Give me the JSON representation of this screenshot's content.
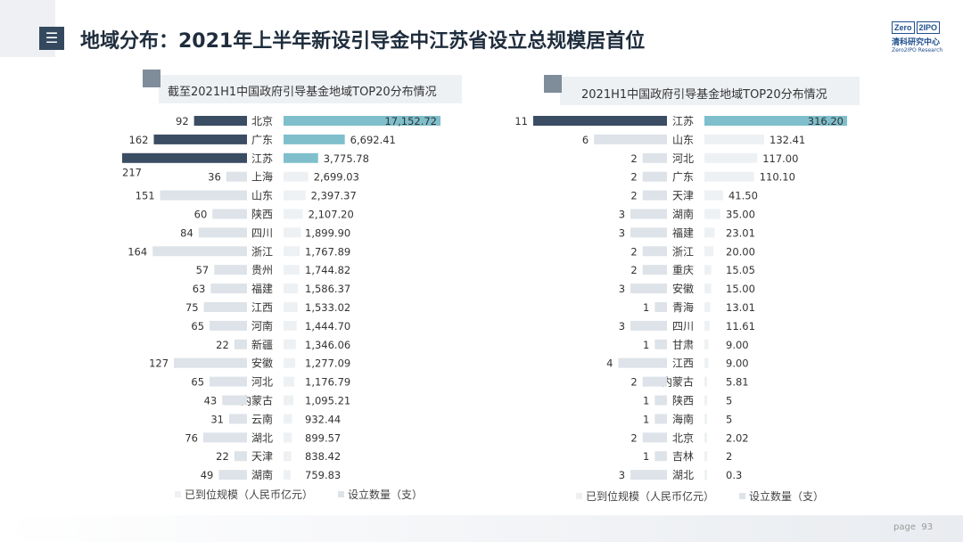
{
  "header": {
    "menu_glyph": "☰",
    "title": "地域分布：2021年上半年新设引导金中江苏省设立总规模居首位"
  },
  "logo": {
    "l1": "Zero",
    "l2": "2IPO",
    "cn": "清科研究中心",
    "en": "Zero2IPO Research"
  },
  "footer": {
    "page_label": "page",
    "page_number": "93"
  },
  "chart_data": [
    {
      "type": "bar",
      "title": "截至2021H1中国政府引导基金地域TOP20分布情况",
      "categories": [
        "北京",
        "广东",
        "江苏",
        "上海",
        "山东",
        "陕西",
        "四川",
        "浙江",
        "贵州",
        "福建",
        "江西",
        "河南",
        "新疆",
        "安徽",
        "河北",
        "内蒙古",
        "云南",
        "湖北",
        "天津",
        "湖南"
      ],
      "series": [
        {
          "name": "设立数量（支）",
          "side": "left",
          "values": [
            92,
            162,
            217,
            36,
            151,
            60,
            84,
            164,
            57,
            63,
            75,
            65,
            22,
            127,
            65,
            43,
            31,
            76,
            22,
            49
          ],
          "labels": [
            "92",
            "162",
            "217",
            "36",
            "151",
            "60",
            "84",
            "164",
            "57",
            "63",
            "75",
            "65",
            "22",
            "127",
            "65",
            "43",
            "31",
            "76",
            "22",
            "49"
          ]
        },
        {
          "name": "已到位规模（人民币亿元）",
          "side": "right",
          "values": [
            17152.72,
            6692.41,
            3775.78,
            2699.03,
            2397.37,
            2107.2,
            1899.9,
            1767.89,
            1744.82,
            1586.37,
            1533.02,
            1444.7,
            1346.06,
            1277.09,
            1176.79,
            1095.21,
            932.44,
            899.57,
            838.42,
            759.83
          ],
          "labels": [
            "17,152.72",
            "6,692.41",
            "3,775.78",
            "2,699.03",
            "2,397.37",
            "2,107.20",
            "1,899.90",
            "1,767.89",
            "1,744.82",
            "1,586.37",
            "1,533.02",
            "1,444.70",
            "1,346.06",
            "1,277.09",
            "1,176.79",
            "1,095.21",
            "932.44",
            "899.57",
            "838.42",
            "759.83"
          ]
        }
      ],
      "highlight_top": 3,
      "legend": [
        "已到位规模（人民币亿元）",
        "设立数量（支）"
      ],
      "colors": {
        "count_highlight": "#3a4d63",
        "amount_highlight": "#7fbfcc",
        "count_normal": "#dde3e8",
        "amount_normal": "#eef1f4"
      }
    },
    {
      "type": "bar",
      "title": "2021H1中国政府引导基金地域TOP20分布情况",
      "categories": [
        "江苏",
        "山东",
        "河北",
        "广东",
        "天津",
        "湖南",
        "福建",
        "浙江",
        "重庆",
        "安徽",
        "青海",
        "四川",
        "甘肃",
        "江西",
        "内蒙古",
        "陕西",
        "海南",
        "北京",
        "吉林",
        "湖北"
      ],
      "series": [
        {
          "name": "设立数量（支）",
          "side": "left",
          "values": [
            11,
            6,
            2,
            2,
            2,
            3,
            3,
            2,
            2,
            3,
            1,
            3,
            1,
            4,
            2,
            1,
            1,
            2,
            1,
            3
          ],
          "labels": [
            "11",
            "6",
            "2",
            "2",
            "2",
            "3",
            "3",
            "2",
            "2",
            "3",
            "1",
            "3",
            "1",
            "4",
            "2",
            "1",
            "1",
            "2",
            "1",
            "3"
          ]
        },
        {
          "name": "已到位规模（人民币亿元）",
          "side": "right",
          "values": [
            316.2,
            132.41,
            117.0,
            110.1,
            41.5,
            35.0,
            23.01,
            20.0,
            15.05,
            15.0,
            13.01,
            11.61,
            9.0,
            9.0,
            5.81,
            5,
            5,
            2.02,
            2,
            0.3
          ],
          "labels": [
            "316.20",
            "132.41",
            "117.00",
            "110.10",
            "41.50",
            "35.00",
            "23.01",
            "20.00",
            "15.05",
            "15.00",
            "13.01",
            "11.61",
            "9.00",
            "9.00",
            "5.81",
            "5",
            "5",
            "2.02",
            "2",
            "0.3"
          ]
        }
      ],
      "highlight_top": 1,
      "legend": [
        "已到位规模（人民币亿元）",
        "设立数量（支）"
      ],
      "colors": {
        "count_highlight": "#3a4d63",
        "amount_highlight": "#7fbfcc",
        "count_normal": "#dde3e8",
        "amount_normal": "#eef1f4"
      }
    }
  ]
}
